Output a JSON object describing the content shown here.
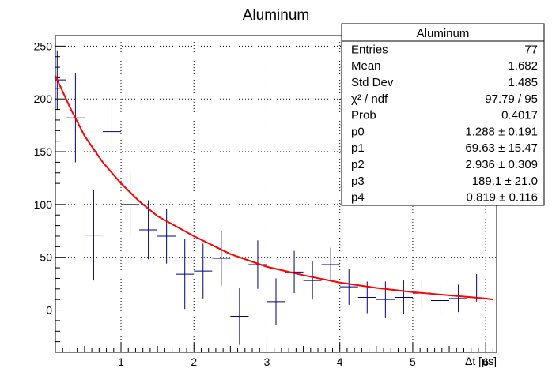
{
  "chart_data": {
    "type": "scatter",
    "title": "Aluminum",
    "xlabel": "Δt [µs]",
    "ylabel": "",
    "xlim": [
      0.1,
      6.15
    ],
    "ylim": [
      -40,
      260
    ],
    "x_ticks": [
      1,
      2,
      3,
      4,
      5,
      6
    ],
    "x_tick_labels": [
      "1",
      "2",
      "3",
      "4",
      "5",
      "6"
    ],
    "y_ticks": [
      0,
      50,
      100,
      150,
      200,
      250
    ],
    "y_tick_labels": [
      "0",
      "50",
      "100",
      "150",
      "200",
      "250"
    ],
    "grid": true,
    "colors": {
      "data": "#000080",
      "fit": "#ff0000",
      "grid": "#000000"
    },
    "series": [
      {
        "marker": "error-cross",
        "x": [
          0.125,
          0.375,
          0.625,
          0.875,
          1.125,
          1.375,
          1.625,
          1.875,
          2.125,
          2.375,
          2.625,
          2.875,
          3.125,
          3.375,
          3.625,
          3.875,
          4.125,
          4.375,
          4.625,
          4.875,
          5.125,
          5.375,
          5.625,
          5.875,
          6.125
        ],
        "y": [
          218,
          182,
          71,
          169,
          100,
          76,
          70,
          34,
          37,
          49,
          -6,
          43,
          8,
          36,
          28,
          43,
          22,
          12,
          10,
          12,
          16,
          9,
          11,
          21,
          0
        ],
        "xerr": [
          0.125,
          0.125,
          0.125,
          0.125,
          0.125,
          0.125,
          0.125,
          0.125,
          0.125,
          0.125,
          0.125,
          0.125,
          0.125,
          0.125,
          0.125,
          0.125,
          0.125,
          0.125,
          0.125,
          0.125,
          0.125,
          0.125,
          0.125,
          0.125,
          0.125
        ],
        "yerr": [
          28,
          42,
          43,
          34,
          31,
          28,
          26,
          33,
          26,
          26,
          27,
          23,
          22,
          20,
          18,
          16,
          17,
          15,
          17,
          16,
          14,
          14,
          13,
          13,
          0
        ]
      },
      {
        "marker": "fit-curve",
        "x": [
          0.1,
          0.3,
          0.5,
          0.75,
          1.0,
          1.25,
          1.5,
          2.0,
          2.5,
          3.0,
          3.5,
          4.0,
          4.5,
          5.0,
          5.5,
          6.0,
          6.1
        ],
        "y": [
          222,
          192,
          165,
          140,
          120,
          103,
          89,
          70,
          53,
          41,
          33,
          26,
          21,
          17,
          14,
          11,
          10
        ]
      }
    ],
    "stats_box": {
      "title": "Aluminum",
      "rows": [
        {
          "label": "Entries",
          "value": "77"
        },
        {
          "label": "Mean",
          "value": "1.682"
        },
        {
          "label": "Std Dev",
          "value": "1.485"
        },
        {
          "label": "χ² / ndf",
          "value": "97.79 / 95"
        },
        {
          "label": "Prob",
          "value": "0.4017"
        },
        {
          "label": "p0",
          "value": "1.288 ± 0.191"
        },
        {
          "label": "p1",
          "value": "69.63 ± 15.47"
        },
        {
          "label": "p2",
          "value": "2.936 ± 0.309"
        },
        {
          "label": "p3",
          "value": "189.1 ± 21.0"
        },
        {
          "label": "p4",
          "value": "0.819 ± 0.116"
        }
      ]
    }
  }
}
